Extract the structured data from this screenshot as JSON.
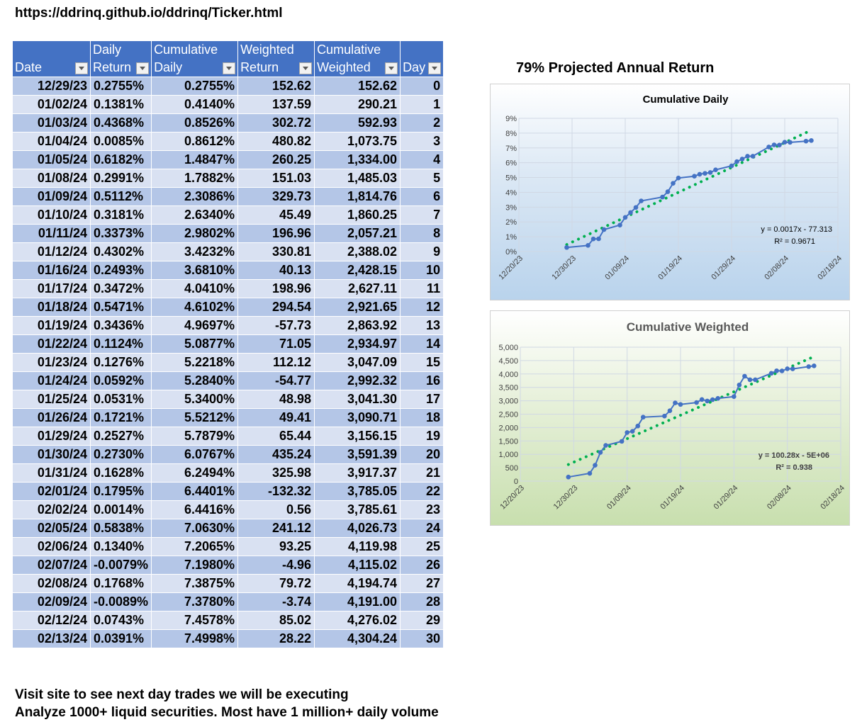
{
  "url": "https://ddrinq.github.io/ddrinq/Ticker.html",
  "table": {
    "headers": [
      {
        "line1": "",
        "line2": "Date"
      },
      {
        "line1": "Daily",
        "line2": "Return"
      },
      {
        "line1": "Cumulative",
        "line2": "Daily"
      },
      {
        "line1": "Weighted",
        "line2": "Return"
      },
      {
        "line1": "Cumulative",
        "line2": "Weighted"
      },
      {
        "line1": "",
        "line2": "Day"
      }
    ],
    "rows": [
      [
        "12/29/23",
        "0.2755%",
        "0.2755%",
        "152.62",
        "152.62",
        "0"
      ],
      [
        "01/02/24",
        "0.1381%",
        "0.4140%",
        "137.59",
        "290.21",
        "1"
      ],
      [
        "01/03/24",
        "0.4368%",
        "0.8526%",
        "302.72",
        "592.93",
        "2"
      ],
      [
        "01/04/24",
        "0.0085%",
        "0.8612%",
        "480.82",
        "1,073.75",
        "3"
      ],
      [
        "01/05/24",
        "0.6182%",
        "1.4847%",
        "260.25",
        "1,334.00",
        "4"
      ],
      [
        "01/08/24",
        "0.2991%",
        "1.7882%",
        "151.03",
        "1,485.03",
        "5"
      ],
      [
        "01/09/24",
        "0.5112%",
        "2.3086%",
        "329.73",
        "1,814.76",
        "6"
      ],
      [
        "01/10/24",
        "0.3181%",
        "2.6340%",
        "45.49",
        "1,860.25",
        "7"
      ],
      [
        "01/11/24",
        "0.3373%",
        "2.9802%",
        "196.96",
        "2,057.21",
        "8"
      ],
      [
        "01/12/24",
        "0.4302%",
        "3.4232%",
        "330.81",
        "2,388.02",
        "9"
      ],
      [
        "01/16/24",
        "0.2493%",
        "3.6810%",
        "40.13",
        "2,428.15",
        "10"
      ],
      [
        "01/17/24",
        "0.3472%",
        "4.0410%",
        "198.96",
        "2,627.11",
        "11"
      ],
      [
        "01/18/24",
        "0.5471%",
        "4.6102%",
        "294.54",
        "2,921.65",
        "12"
      ],
      [
        "01/19/24",
        "0.3436%",
        "4.9697%",
        "-57.73",
        "2,863.92",
        "13"
      ],
      [
        "01/22/24",
        "0.1124%",
        "5.0877%",
        "71.05",
        "2,934.97",
        "14"
      ],
      [
        "01/23/24",
        "0.1276%",
        "5.2218%",
        "112.12",
        "3,047.09",
        "15"
      ],
      [
        "01/24/24",
        "0.0592%",
        "5.2840%",
        "-54.77",
        "2,992.32",
        "16"
      ],
      [
        "01/25/24",
        "0.0531%",
        "5.3400%",
        "48.98",
        "3,041.30",
        "17"
      ],
      [
        "01/26/24",
        "0.1721%",
        "5.5212%",
        "49.41",
        "3,090.71",
        "18"
      ],
      [
        "01/29/24",
        "0.2527%",
        "5.7879%",
        "65.44",
        "3,156.15",
        "19"
      ],
      [
        "01/30/24",
        "0.2730%",
        "6.0767%",
        "435.24",
        "3,591.39",
        "20"
      ],
      [
        "01/31/24",
        "0.1628%",
        "6.2494%",
        "325.98",
        "3,917.37",
        "21"
      ],
      [
        "02/01/24",
        "0.1795%",
        "6.4401%",
        "-132.32",
        "3,785.05",
        "22"
      ],
      [
        "02/02/24",
        "0.0014%",
        "6.4416%",
        "0.56",
        "3,785.61",
        "23"
      ],
      [
        "02/05/24",
        "0.5838%",
        "7.0630%",
        "241.12",
        "4,026.73",
        "24"
      ],
      [
        "02/06/24",
        "0.1340%",
        "7.2065%",
        "93.25",
        "4,119.98",
        "25"
      ],
      [
        "02/07/24",
        "-0.0079%",
        "7.1980%",
        "-4.96",
        "4,115.02",
        "26"
      ],
      [
        "02/08/24",
        "0.1768%",
        "7.3875%",
        "79.72",
        "4,194.74",
        "27"
      ],
      [
        "02/09/24",
        "-0.0089%",
        "7.3780%",
        "-3.74",
        "4,191.00",
        "28"
      ],
      [
        "02/12/24",
        "0.0743%",
        "7.4578%",
        "85.02",
        "4,276.02",
        "29"
      ],
      [
        "02/13/24",
        "0.0391%",
        "7.4998%",
        "28.22",
        "4,304.24",
        "30"
      ]
    ]
  },
  "projection_text": "79% Projected Annual Return",
  "colors": {
    "series": "#4472c4",
    "trend": "#00b050",
    "header": "#4472c4",
    "row_odd": "#b4c6e7",
    "row_even": "#d9e1f2"
  },
  "chart_data": [
    {
      "type": "scatter",
      "title": "Cumulative Daily",
      "x": [
        "12/29/23",
        "01/02/24",
        "01/03/24",
        "01/04/24",
        "01/05/24",
        "01/08/24",
        "01/09/24",
        "01/10/24",
        "01/11/24",
        "01/12/24",
        "01/16/24",
        "01/17/24",
        "01/18/24",
        "01/19/24",
        "01/22/24",
        "01/23/24",
        "01/24/24",
        "01/25/24",
        "01/26/24",
        "01/29/24",
        "01/30/24",
        "01/31/24",
        "02/01/24",
        "02/02/24",
        "02/05/24",
        "02/06/24",
        "02/07/24",
        "02/08/24",
        "02/09/24",
        "02/12/24",
        "02/13/24"
      ],
      "values": [
        0.2755,
        0.414,
        0.8526,
        0.8612,
        1.4847,
        1.7882,
        2.3086,
        2.634,
        2.9802,
        3.4232,
        3.681,
        4.041,
        4.6102,
        4.9697,
        5.0877,
        5.2218,
        5.284,
        5.34,
        5.5212,
        5.7879,
        6.0767,
        6.2494,
        6.4401,
        6.4416,
        7.063,
        7.2065,
        7.198,
        7.3875,
        7.378,
        7.4578,
        7.4998
      ],
      "y_ticks": [
        "0%",
        "1%",
        "2%",
        "3%",
        "4%",
        "5%",
        "6%",
        "7%",
        "8%",
        "9%"
      ],
      "ylim": [
        0,
        9
      ],
      "x_ticks": [
        "12/20/23",
        "12/30/23",
        "01/09/24",
        "01/19/24",
        "01/29/24",
        "02/08/24",
        "02/18/24"
      ],
      "xlim": [
        "12/20/23",
        "02/18/24"
      ],
      "trendline": {
        "type": "linear",
        "start_value": 0.47,
        "end_value": 8.2
      },
      "equation": "y = 0.0017x - 77.313",
      "r_squared": "R² = 0.9671"
    },
    {
      "type": "scatter",
      "title": "Cumulative Weighted",
      "x": [
        "12/29/23",
        "01/02/24",
        "01/03/24",
        "01/04/24",
        "01/05/24",
        "01/08/24",
        "01/09/24",
        "01/10/24",
        "01/11/24",
        "01/12/24",
        "01/16/24",
        "01/17/24",
        "01/18/24",
        "01/19/24",
        "01/22/24",
        "01/23/24",
        "01/24/24",
        "01/25/24",
        "01/26/24",
        "01/29/24",
        "01/30/24",
        "01/31/24",
        "02/01/24",
        "02/02/24",
        "02/05/24",
        "02/06/24",
        "02/07/24",
        "02/08/24",
        "02/09/24",
        "02/12/24",
        "02/13/24"
      ],
      "values": [
        152.62,
        290.21,
        592.93,
        1073.75,
        1334.0,
        1485.03,
        1814.76,
        1860.25,
        2057.21,
        2388.02,
        2428.15,
        2627.11,
        2921.65,
        2863.92,
        2934.97,
        3047.09,
        2992.32,
        3041.3,
        3090.71,
        3156.15,
        3591.39,
        3917.37,
        3785.05,
        3785.61,
        4026.73,
        4119.98,
        4115.02,
        4194.74,
        4191.0,
        4276.02,
        4304.24
      ],
      "y_ticks": [
        "0",
        "500",
        "1,000",
        "1,500",
        "2,000",
        "2,500",
        "3,000",
        "3,500",
        "4,000",
        "4,500",
        "5,000"
      ],
      "ylim": [
        0,
        5000
      ],
      "x_ticks": [
        "12/20/23",
        "12/30/23",
        "01/09/24",
        "01/19/24",
        "01/29/24",
        "02/08/24",
        "02/18/24"
      ],
      "xlim": [
        "12/20/23",
        "02/18/24"
      ],
      "trendline": {
        "type": "linear",
        "start_value": 620,
        "end_value": 4650
      },
      "equation": "y = 100.28x - 5E+06",
      "r_squared": "R² = 0.938"
    }
  ],
  "footer": {
    "line1": "Visit site to see next day trades we will be executing",
    "line2": "Analyze 1000+ liquid securities.  Most have 1 million+ daily volume"
  }
}
